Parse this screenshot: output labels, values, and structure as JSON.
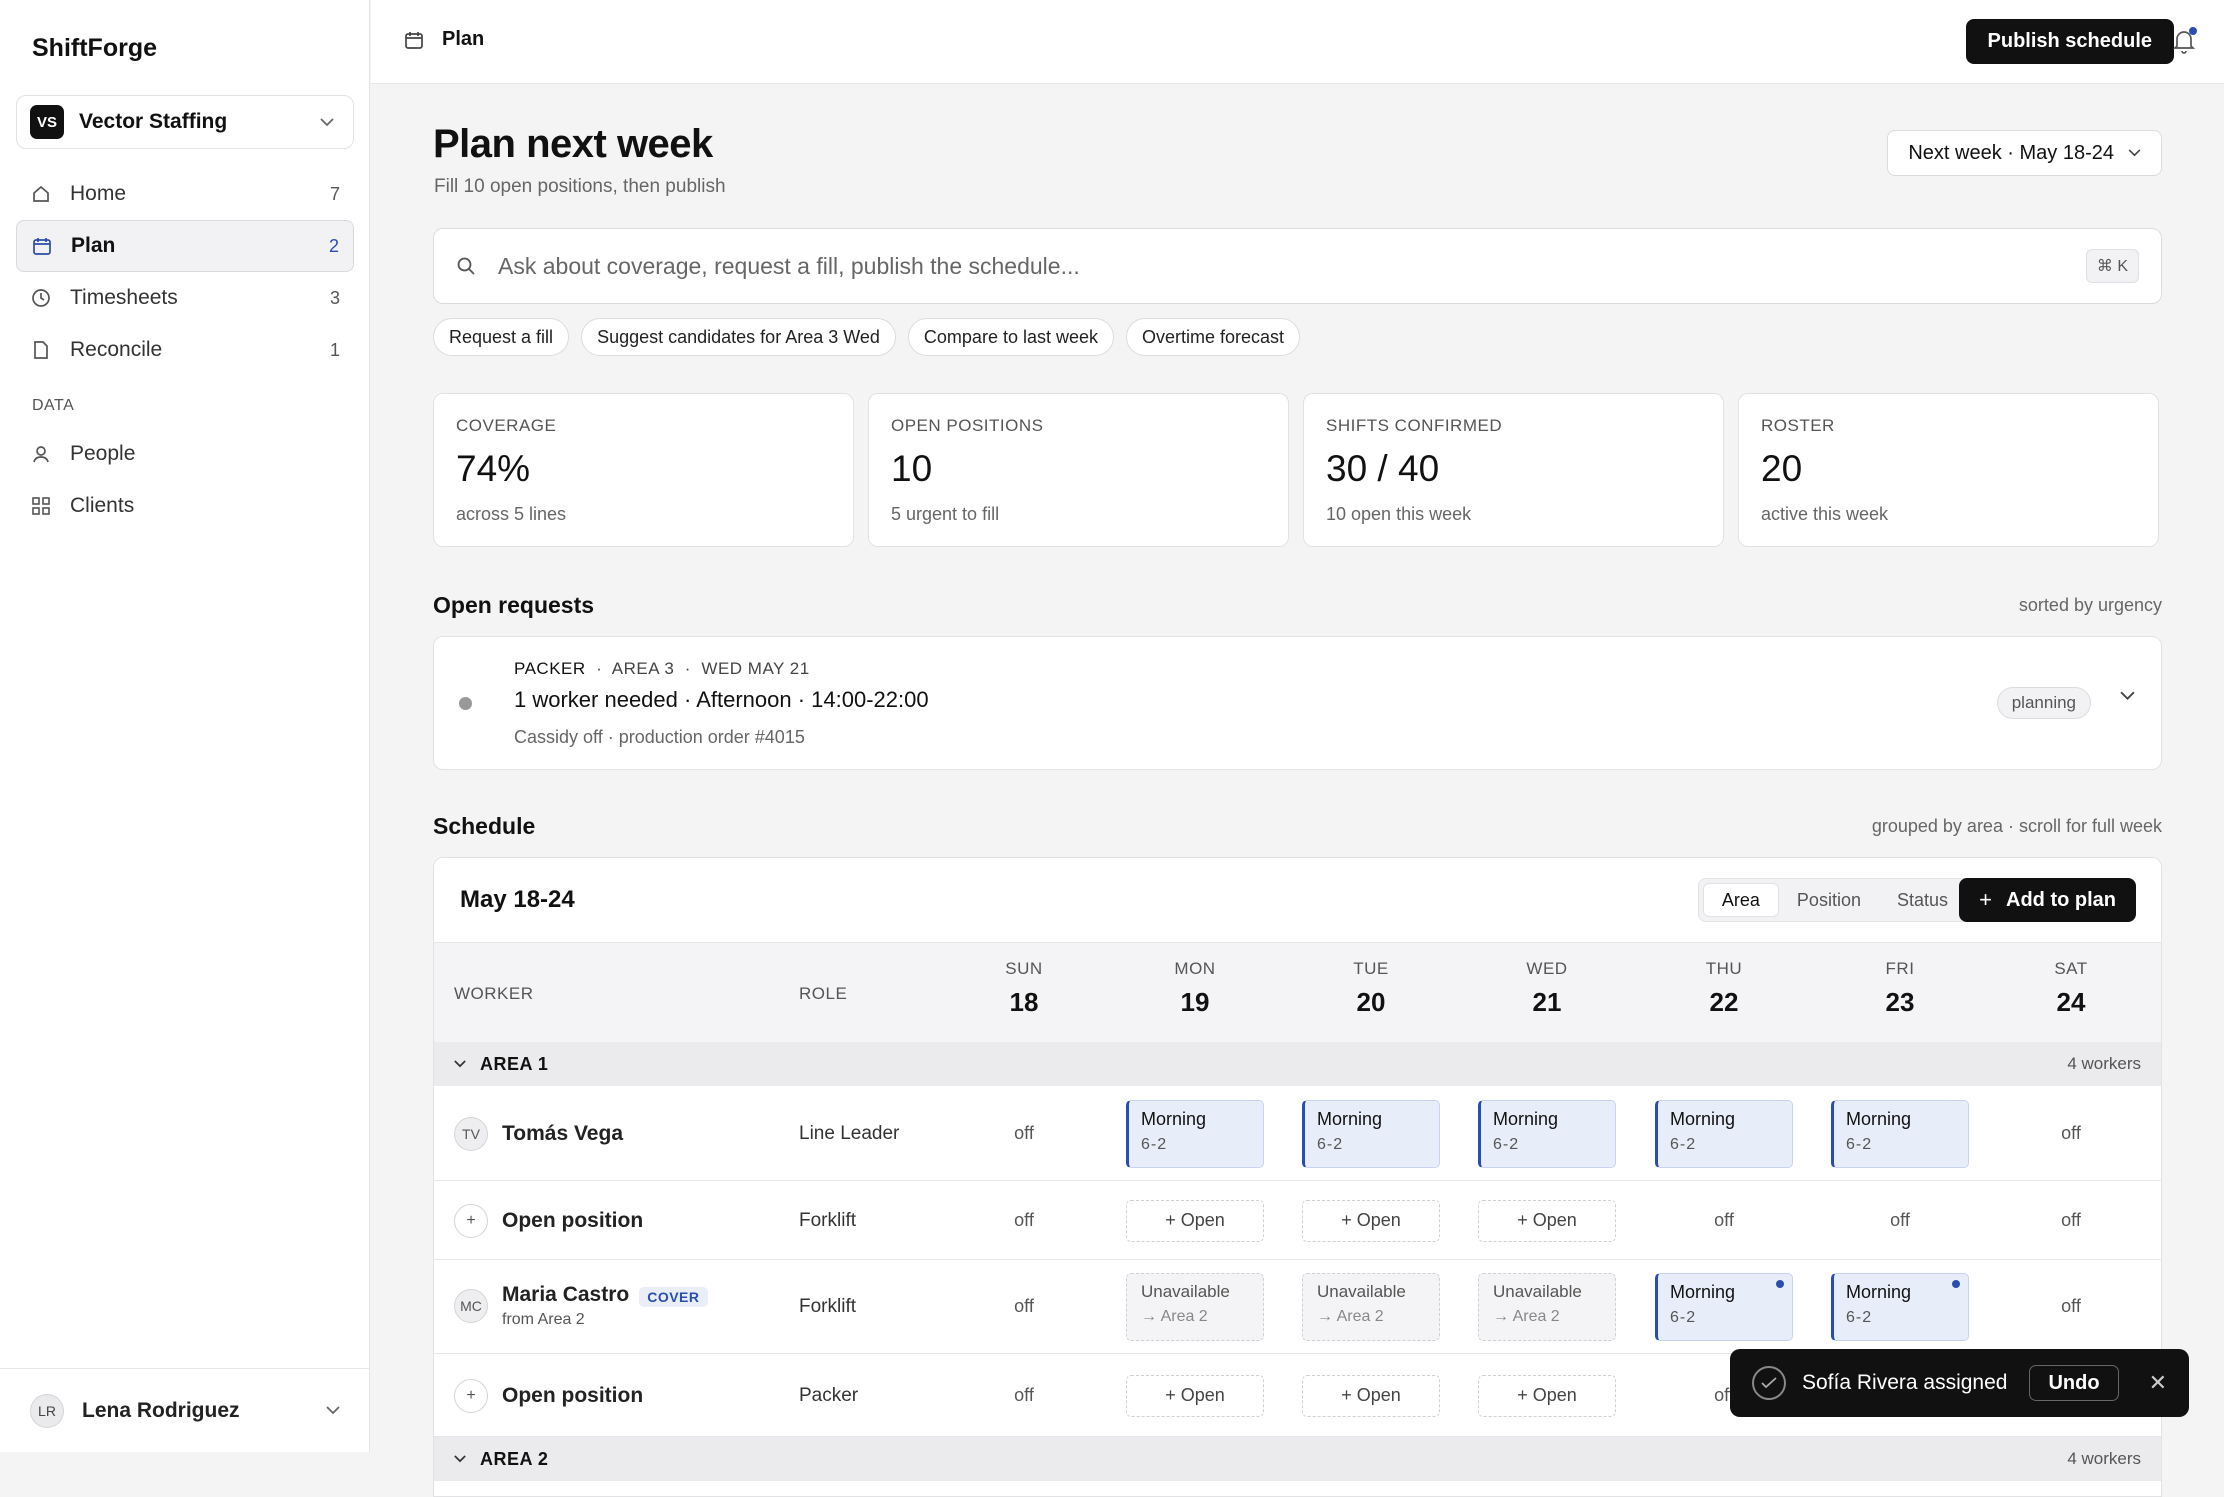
{
  "app": {
    "brand": "ShiftForge"
  },
  "org": {
    "initials": "VS",
    "name": "Vector Staffing"
  },
  "nav": [
    {
      "label": "Home",
      "count": "7",
      "icon": "home-icon"
    },
    {
      "label": "Plan",
      "count": "2",
      "icon": "calendar-icon"
    },
    {
      "label": "Timesheets",
      "count": "3",
      "icon": "clock-icon"
    },
    {
      "label": "Reconcile",
      "count": "1",
      "icon": "file-icon"
    }
  ],
  "data_section": {
    "label": "DATA",
    "items": [
      {
        "label": "People",
        "icon": "person-icon"
      },
      {
        "label": "Clients",
        "icon": "grid-icon"
      }
    ]
  },
  "user": {
    "initials": "LR",
    "name": "Lena Rodriguez"
  },
  "topbar": {
    "crumb": "Plan",
    "publish_label": "Publish schedule"
  },
  "page": {
    "title": "Plan next week",
    "subtitle": "Fill 10 open positions, then publish",
    "week_label": "Next week · May 18-24"
  },
  "search": {
    "placeholder": "Ask about coverage, request a fill, publish the schedule...",
    "shortcut": "⌘ K"
  },
  "chips": [
    "Request a fill",
    "Suggest candidates for Area 3 Wed",
    "Compare to last week",
    "Overtime forecast"
  ],
  "stats": [
    {
      "label": "COVERAGE",
      "value": "74%",
      "sub": "across 5 lines"
    },
    {
      "label": "OPEN POSITIONS",
      "value": "10",
      "sub": "5 urgent to fill"
    },
    {
      "label": "SHIFTS CONFIRMED",
      "value": "30 / 40",
      "sub": "10 open this week"
    },
    {
      "label": "ROSTER",
      "value": "20",
      "sub": "active this week"
    }
  ],
  "requests": {
    "title": "Open requests",
    "note": "sorted by urgency",
    "item": {
      "role": "PACKER",
      "area": "AREA 3",
      "date": "WED MAY 21",
      "title": "1 worker needed · Afternoon · 14:00-22:00",
      "desc": "Cassidy off · production order #4015",
      "status": "planning"
    }
  },
  "schedule": {
    "title": "Schedule",
    "note": "grouped by area · scroll for full week",
    "range": "May 18-24",
    "views": [
      "Area",
      "Position",
      "Status"
    ],
    "add_label": "Add to plan",
    "col_worker": "WORKER",
    "col_role": "ROLE",
    "days": [
      {
        "name": "SUN",
        "num": "18"
      },
      {
        "name": "MON",
        "num": "19"
      },
      {
        "name": "TUE",
        "num": "20"
      },
      {
        "name": "WED",
        "num": "21"
      },
      {
        "name": "THU",
        "num": "22"
      },
      {
        "name": "FRI",
        "num": "23"
      },
      {
        "name": "SAT",
        "num": "24"
      }
    ],
    "group1": {
      "name": "AREA 1",
      "count": "4 workers"
    },
    "group2": {
      "name": "AREA 2",
      "count": "4 workers"
    },
    "rows": [
      {
        "initials": "TV",
        "name": "Tomás Vega",
        "role": "Line Leader",
        "cells": [
          {
            "type": "off",
            "t1": "off"
          },
          {
            "type": "shift",
            "t1": "Morning",
            "t2": "6-2"
          },
          {
            "type": "shift",
            "t1": "Morning",
            "t2": "6-2"
          },
          {
            "type": "shift",
            "t1": "Morning",
            "t2": "6-2"
          },
          {
            "type": "shift",
            "t1": "Morning",
            "t2": "6-2"
          },
          {
            "type": "shift",
            "t1": "Morning",
            "t2": "6-2"
          },
          {
            "type": "off",
            "t1": "off"
          }
        ]
      },
      {
        "initials": "+",
        "name": "Open position",
        "role": "Forklift",
        "cells": [
          {
            "type": "off",
            "t1": "off"
          },
          {
            "type": "open",
            "t1": "+ Open"
          },
          {
            "type": "open",
            "t1": "+ Open"
          },
          {
            "type": "open",
            "t1": "+ Open"
          },
          {
            "type": "off",
            "t1": "off"
          },
          {
            "type": "off",
            "t1": "off"
          },
          {
            "type": "off",
            "t1": "off"
          }
        ]
      },
      {
        "initials": "MC",
        "name": "Maria Castro",
        "badge": "COVER",
        "sub": "from Area 2",
        "role": "Forklift",
        "cells": [
          {
            "type": "off",
            "t1": "off"
          },
          {
            "type": "unav",
            "t1": "Unavailable",
            "t2": "→ Area 2"
          },
          {
            "type": "unav",
            "t1": "Unavailable",
            "t2": "→ Area 2"
          },
          {
            "type": "unav",
            "t1": "Unavailable",
            "t2": "→ Area 2"
          },
          {
            "type": "shift",
            "t1": "Morning",
            "t2": "6-2",
            "mark": true
          },
          {
            "type": "shift",
            "t1": "Morning",
            "t2": "6-2",
            "mark": true
          },
          {
            "type": "off",
            "t1": "off"
          }
        ]
      },
      {
        "initials": "+",
        "name": "Open position",
        "role": "Packer",
        "cells": [
          {
            "type": "off",
            "t1": "off"
          },
          {
            "type": "open",
            "t1": "+ Open"
          },
          {
            "type": "open",
            "t1": "+ Open"
          },
          {
            "type": "open",
            "t1": "+ Open"
          },
          {
            "type": "off",
            "t1": "off"
          },
          {
            "type": "off",
            "t1": "off"
          },
          {
            "type": "off",
            "t1": "off"
          }
        ]
      }
    ]
  },
  "toast": {
    "message": "Sofía Rivera assigned",
    "undo": "Undo"
  }
}
